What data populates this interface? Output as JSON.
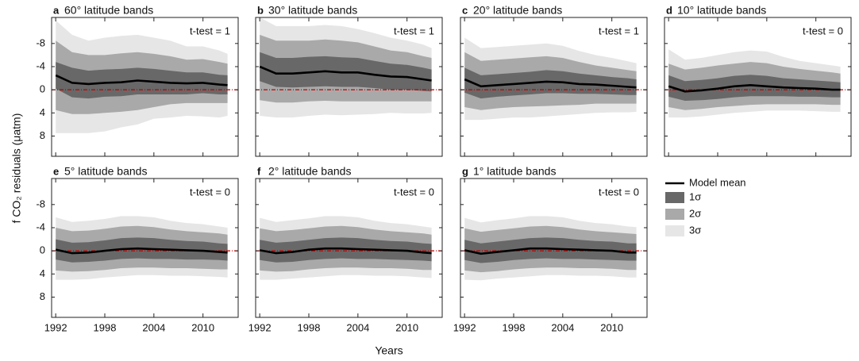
{
  "x_label": "Years",
  "y_label": "f CO₂ residuals (μatm)",
  "zero_line_color": "#c00000",
  "legend": [
    {
      "name": "Model mean",
      "color": "#000000"
    },
    {
      "name": "1σ",
      "color": "#686868"
    },
    {
      "name": "2σ",
      "color": "#a9a9a9"
    },
    {
      "name": "3σ",
      "color": "#e6e6e6"
    }
  ],
  "chart_data": [
    {
      "type": "band",
      "label": "a",
      "title": "60° latitude bands",
      "title_color": "#3d3499",
      "annotation": "t-test = 1",
      "annotation_color": "#111111",
      "x": [
        1992,
        1994,
        1996,
        1998,
        2000,
        2002,
        2004,
        2006,
        2008,
        2010,
        2012,
        2013
      ],
      "xlim": [
        1991.5,
        2014.3
      ],
      "xticks": [
        1992,
        1998,
        2004,
        2010
      ],
      "xtick_labels": false,
      "ylim": [
        -12.5,
        11.5
      ],
      "y_inverted": true,
      "yticks": [
        -8,
        -4,
        0,
        4,
        8
      ],
      "ytick_labels": true,
      "mean": [
        -2.5,
        -1.2,
        -1.0,
        -1.2,
        -1.3,
        -1.6,
        -1.4,
        -1.2,
        -1.1,
        -1.2,
        -0.9,
        -0.8
      ],
      "bands": [
        {
          "lower": [
            -4.8,
            -3.8,
            -3.3,
            -3.5,
            -3.6,
            -3.8,
            -3.6,
            -3.3,
            -3.0,
            -3.0,
            -2.6,
            -2.5
          ],
          "upper": [
            -0.2,
            1.3,
            1.5,
            1.2,
            1.1,
            0.8,
            0.8,
            0.8,
            0.8,
            0.6,
            0.8,
            0.8
          ]
        },
        {
          "lower": [
            -8.5,
            -6.5,
            -6,
            -6,
            -6.3,
            -6.5,
            -6.2,
            -5.8,
            -5.2,
            -5.3,
            -4.8,
            -4.5
          ],
          "upper": [
            3.5,
            4.2,
            4.2,
            4,
            3.8,
            3.5,
            3,
            2.5,
            2.3,
            2.3,
            2.3,
            2.3
          ]
        },
        {
          "lower": [
            -12,
            -9.5,
            -8.5,
            -9,
            -9.3,
            -9.5,
            -9,
            -8.5,
            -7.5,
            -7.5,
            -6.8,
            -6.2
          ],
          "upper": [
            7.5,
            7.5,
            7.5,
            7.2,
            6.5,
            6,
            5,
            4.8,
            4.5,
            4.6,
            4.8,
            4.5
          ]
        }
      ]
    },
    {
      "type": "band",
      "label": "b",
      "title": "30° latitude bands",
      "title_color": "#3d3499",
      "annotation": "t-test = 1",
      "annotation_color": "#111111",
      "x": [
        1992,
        1994,
        1996,
        1998,
        2000,
        2002,
        2004,
        2006,
        2008,
        2010,
        2012,
        2013
      ],
      "xlim": [
        1991.5,
        2014.3
      ],
      "xticks": [
        1992,
        1998,
        2004,
        2010
      ],
      "xtick_labels": false,
      "ylim": [
        -12.5,
        11.5
      ],
      "y_inverted": true,
      "yticks": [
        -8,
        -4,
        0,
        4,
        8
      ],
      "ytick_labels": false,
      "mean": [
        -4,
        -2.8,
        -2.8,
        -3,
        -3.2,
        -3,
        -3,
        -2.6,
        -2.3,
        -2.2,
        -1.8,
        -1.6
      ],
      "bands": [
        {
          "lower": [
            -6.5,
            -5.5,
            -5.5,
            -5.7,
            -5.8,
            -5.6,
            -5.5,
            -5,
            -4.5,
            -4.3,
            -3.8,
            -3.5
          ],
          "upper": [
            -1.5,
            -0.5,
            -0.4,
            -0.5,
            -0.6,
            -0.5,
            -0.5,
            -0.3,
            0,
            0,
            0.2,
            0.3
          ]
        },
        {
          "lower": [
            -9.5,
            -8.5,
            -8.5,
            -8.5,
            -8.7,
            -8.5,
            -8.2,
            -7.5,
            -6.8,
            -6.5,
            -5.8,
            -5.5
          ],
          "upper": [
            1.8,
            2.2,
            2.2,
            2,
            1.9,
            2,
            2,
            2,
            2,
            2,
            2,
            2
          ]
        },
        {
          "lower": [
            -12.5,
            -11,
            -11,
            -11,
            -11.2,
            -11,
            -10.5,
            -9.8,
            -9,
            -8.5,
            -7.8,
            -7.2
          ],
          "upper": [
            4.5,
            4.8,
            4.8,
            4.5,
            4.3,
            4.4,
            4.3,
            4.2,
            4,
            4.1,
            4.1,
            4
          ]
        }
      ]
    },
    {
      "type": "band",
      "label": "c",
      "title": "20° latitude bands",
      "title_color": "#3d3499",
      "annotation": "t-test = 1",
      "annotation_color": "#111111",
      "x": [
        1992,
        1994,
        1996,
        1998,
        2000,
        2002,
        2004,
        2006,
        2008,
        2010,
        2012,
        2013
      ],
      "xlim": [
        1991.5,
        2014.3
      ],
      "xticks": [
        1992,
        1998,
        2004,
        2010
      ],
      "xtick_labels": false,
      "ylim": [
        -12.5,
        11.5
      ],
      "y_inverted": true,
      "yticks": [
        -8,
        -4,
        0,
        4,
        8
      ],
      "ytick_labels": false,
      "mean": [
        -1.8,
        -0.6,
        -0.8,
        -1,
        -1.2,
        -1.4,
        -1.3,
        -1,
        -0.9,
        -0.7,
        -0.5,
        -0.4
      ],
      "bands": [
        {
          "lower": [
            -3.8,
            -2.5,
            -2.7,
            -2.9,
            -3.1,
            -3.4,
            -3.2,
            -2.8,
            -2.5,
            -2.2,
            -2,
            -1.8
          ],
          "upper": [
            0.5,
            1.5,
            1.2,
            1,
            0.8,
            0.6,
            0.6,
            0.7,
            0.7,
            0.8,
            0.9,
            0.9
          ]
        },
        {
          "lower": [
            -6.5,
            -5,
            -5.2,
            -5.4,
            -5.6,
            -5.8,
            -5.5,
            -4.8,
            -4.2,
            -3.8,
            -3.4,
            -3.2
          ],
          "upper": [
            3,
            3.5,
            3.2,
            3,
            2.9,
            2.8,
            2.7,
            2.6,
            2.4,
            2.4,
            2.4,
            2.4
          ]
        },
        {
          "lower": [
            -9,
            -7.2,
            -7.4,
            -7.6,
            -7.8,
            -8,
            -7.6,
            -6.7,
            -6,
            -5.5,
            -4.9,
            -4.6
          ],
          "upper": [
            5.2,
            5.2,
            5,
            4.8,
            4.8,
            4.6,
            4.4,
            4.2,
            4,
            3.9,
            3.9,
            3.8
          ]
        }
      ]
    },
    {
      "type": "band",
      "label": "d",
      "title": "10° latitude bands",
      "title_color": "#3d3499",
      "annotation": "t-test = 0",
      "annotation_color": "#2e9060",
      "x": [
        1992,
        1994,
        1996,
        1998,
        2000,
        2002,
        2004,
        2006,
        2008,
        2010,
        2012,
        2013
      ],
      "xlim": [
        1991.5,
        2014.3
      ],
      "xticks": [
        1992,
        1998,
        2004,
        2010
      ],
      "xtick_labels": false,
      "ylim": [
        -12.5,
        11.5
      ],
      "y_inverted": true,
      "yticks": [
        -8,
        -4,
        0,
        4,
        8
      ],
      "ytick_labels": false,
      "mean": [
        -0.6,
        0.3,
        0.1,
        -0.2,
        -0.6,
        -0.8,
        -0.6,
        -0.4,
        -0.3,
        -0.2,
        0,
        0
      ],
      "bands": [
        {
          "lower": [
            -2.5,
            -1.5,
            -1.7,
            -2,
            -2.4,
            -2.6,
            -2.4,
            -2,
            -1.8,
            -1.6,
            -1.4,
            -1.3
          ],
          "upper": [
            1.2,
            1.9,
            1.8,
            1.6,
            1.3,
            1.1,
            1.1,
            1.1,
            1.2,
            1.2,
            1.3,
            1.3
          ]
        },
        {
          "lower": [
            -4.5,
            -3.5,
            -3.8,
            -4.2,
            -4.5,
            -4.8,
            -4.6,
            -4,
            -3.6,
            -3.3,
            -3,
            -2.8
          ],
          "upper": [
            3,
            3.5,
            3.3,
            3,
            2.8,
            2.6,
            2.5,
            2.5,
            2.5,
            2.5,
            2.6,
            2.6
          ]
        },
        {
          "lower": [
            -7,
            -5.2,
            -5.5,
            -6,
            -6.5,
            -6.8,
            -6.6,
            -5.7,
            -5,
            -4.6,
            -4.2,
            -4
          ],
          "upper": [
            4.8,
            4.8,
            4.6,
            4.3,
            4,
            3.8,
            3.6,
            3.6,
            3.6,
            3.7,
            3.8,
            3.8
          ]
        }
      ]
    },
    {
      "type": "band",
      "label": "e",
      "title": "5° latitude bands",
      "title_color": "#3d3499",
      "annotation": "t-test = 0",
      "annotation_color": "#2e9060",
      "x": [
        1992,
        1994,
        1996,
        1998,
        2000,
        2002,
        2004,
        2006,
        2008,
        2010,
        2012,
        2013
      ],
      "xlim": [
        1991.5,
        2014.3
      ],
      "xticks": [
        1992,
        1998,
        2004,
        2010
      ],
      "xtick_labels": true,
      "ylim": [
        -12.5,
        11.5
      ],
      "y_inverted": true,
      "yticks": [
        -8,
        -4,
        0,
        4,
        8
      ],
      "ytick_labels": true,
      "mean": [
        -0.2,
        0.4,
        0.3,
        0,
        -0.3,
        -0.4,
        -0.3,
        -0.2,
        -0.1,
        0,
        0.2,
        0.3
      ],
      "bands": [
        {
          "lower": [
            -2,
            -1.4,
            -1.5,
            -1.8,
            -2.2,
            -2.3,
            -2.2,
            -1.9,
            -1.7,
            -1.6,
            -1.3,
            -1.2
          ],
          "upper": [
            1.5,
            2,
            1.9,
            1.7,
            1.4,
            1.3,
            1.4,
            1.4,
            1.5,
            1.5,
            1.6,
            1.7
          ]
        },
        {
          "lower": [
            -4,
            -3.4,
            -3.5,
            -3.8,
            -4.2,
            -4.3,
            -4.1,
            -3.7,
            -3.4,
            -3.2,
            -3,
            -2.8
          ],
          "upper": [
            3.4,
            3.6,
            3.5,
            3.3,
            3,
            2.9,
            2.9,
            3,
            3,
            3.1,
            3.2,
            3.2
          ]
        },
        {
          "lower": [
            -5.8,
            -5,
            -5.2,
            -5.5,
            -6,
            -6,
            -5.8,
            -5.2,
            -4.8,
            -4.6,
            -4.2,
            -4
          ],
          "upper": [
            5,
            5,
            4.9,
            4.6,
            4.4,
            4.2,
            4.2,
            4.3,
            4.3,
            4.4,
            4.5,
            4.6
          ]
        }
      ]
    },
    {
      "type": "band",
      "label": "f",
      "title": "2° latitude bands",
      "title_color": "#3d3499",
      "annotation": "t-test = 0",
      "annotation_color": "#2e9060",
      "x": [
        1992,
        1994,
        1996,
        1998,
        2000,
        2002,
        2004,
        2006,
        2008,
        2010,
        2012,
        2013
      ],
      "xlim": [
        1991.5,
        2014.3
      ],
      "xticks": [
        1992,
        1998,
        2004,
        2010
      ],
      "xtick_labels": true,
      "ylim": [
        -12.5,
        11.5
      ],
      "y_inverted": true,
      "yticks": [
        -8,
        -4,
        0,
        4,
        8
      ],
      "ytick_labels": false,
      "mean": [
        -0.1,
        0.4,
        0.2,
        -0.2,
        -0.4,
        -0.4,
        -0.3,
        -0.2,
        -0.1,
        0,
        0.3,
        0.4
      ],
      "bands": [
        {
          "lower": [
            -1.9,
            -1.4,
            -1.6,
            -1.9,
            -2.2,
            -2.3,
            -2.2,
            -1.9,
            -1.7,
            -1.6,
            -1.3,
            -1.2
          ],
          "upper": [
            1.6,
            2,
            1.9,
            1.6,
            1.4,
            1.3,
            1.4,
            1.4,
            1.5,
            1.6,
            1.7,
            1.8
          ]
        },
        {
          "lower": [
            -3.9,
            -3.4,
            -3.6,
            -3.9,
            -4.2,
            -4.3,
            -4.1,
            -3.7,
            -3.4,
            -3.2,
            -3,
            -2.8
          ],
          "upper": [
            3.4,
            3.6,
            3.5,
            3.2,
            3,
            2.9,
            2.9,
            3,
            3,
            3.1,
            3.3,
            3.3
          ]
        },
        {
          "lower": [
            -5.7,
            -5,
            -5.3,
            -5.6,
            -6,
            -6,
            -5.8,
            -5.2,
            -4.8,
            -4.6,
            -4.2,
            -4
          ],
          "upper": [
            5,
            5,
            4.8,
            4.6,
            4.4,
            4.2,
            4.2,
            4.3,
            4.3,
            4.4,
            4.6,
            4.7
          ]
        }
      ]
    },
    {
      "type": "band",
      "label": "g",
      "title": "1° latitude bands",
      "title_color": "#3d3499",
      "annotation": "t-test = 0",
      "annotation_color": "#2e9060",
      "x": [
        1992,
        1994,
        1996,
        1998,
        2000,
        2002,
        2004,
        2006,
        2008,
        2010,
        2012,
        2013
      ],
      "xlim": [
        1991.5,
        2014.3
      ],
      "xticks": [
        1992,
        1998,
        2004,
        2010
      ],
      "xtick_labels": true,
      "ylim": [
        -12.5,
        11.5
      ],
      "y_inverted": true,
      "yticks": [
        -8,
        -4,
        0,
        4,
        8
      ],
      "ytick_labels": false,
      "mean": [
        -0.1,
        0.5,
        0.2,
        -0.1,
        -0.4,
        -0.4,
        -0.3,
        -0.2,
        -0.1,
        0,
        0.3,
        0.3
      ],
      "bands": [
        {
          "lower": [
            -1.9,
            -1.3,
            -1.6,
            -1.9,
            -2.2,
            -2.3,
            -2.2,
            -1.9,
            -1.7,
            -1.6,
            -1.3,
            -1.3
          ],
          "upper": [
            1.6,
            2.1,
            1.9,
            1.6,
            1.4,
            1.3,
            1.4,
            1.4,
            1.5,
            1.6,
            1.7,
            1.7
          ]
        },
        {
          "lower": [
            -3.9,
            -3.3,
            -3.6,
            -3.9,
            -4.2,
            -4.3,
            -4.1,
            -3.7,
            -3.4,
            -3.2,
            -3,
            -2.9
          ],
          "upper": [
            3.4,
            3.7,
            3.5,
            3.2,
            3,
            2.9,
            2.9,
            3,
            3,
            3.1,
            3.3,
            3.3
          ]
        },
        {
          "lower": [
            -5.7,
            -4.9,
            -5.3,
            -5.6,
            -6,
            -6,
            -5.8,
            -5.2,
            -4.8,
            -4.6,
            -4.2,
            -4.1
          ],
          "upper": [
            5,
            5.1,
            4.8,
            4.6,
            4.4,
            4.2,
            4.2,
            4.3,
            4.3,
            4.4,
            4.6,
            4.6
          ]
        }
      ]
    }
  ]
}
